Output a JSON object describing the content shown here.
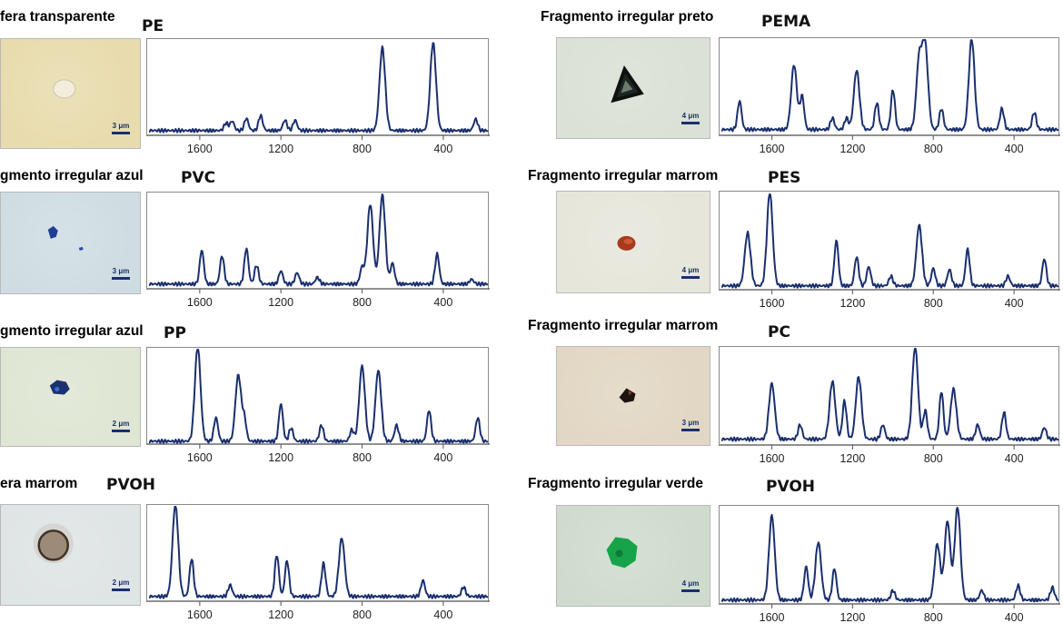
{
  "colors": {
    "line": "#1a2f6e",
    "axis": "#6b6b6b"
  },
  "panels": [
    {
      "sample": "fera transparente",
      "polymer": "PE",
      "scale": "3 μm",
      "photo_bg": "#e8dcae",
      "particle": "faint-transparent-sphere-icon"
    },
    {
      "sample": "gmento irregular azul",
      "polymer": "PVC",
      "scale": "3 μm",
      "photo_bg": "#cfdde3",
      "particle": "blue-fragment-icon"
    },
    {
      "sample": "gmento irregular azul",
      "polymer": "PP",
      "scale": "2 μm",
      "photo_bg": "#dfe6d3",
      "particle": "dark-blue-fragment-icon"
    },
    {
      "sample": "era marrom",
      "polymer": "PVOH",
      "scale": "2 μm",
      "photo_bg": "#dfe4e4",
      "particle": "brown-sphere-icon"
    },
    {
      "sample": "Fragmento irregular preto",
      "polymer": "PEMA",
      "scale": "4 μm",
      "photo_bg": "#dbe1d6",
      "particle": "black-triangular-fragment-icon"
    },
    {
      "sample": "Fragmento irregular marrom",
      "polymer": "PES",
      "scale": "4 μm",
      "photo_bg": "#e6e6db",
      "particle": "red-brown-fragment-icon"
    },
    {
      "sample": "Fragmento irregular marrom",
      "polymer": "PC",
      "scale": "3 μm",
      "photo_bg": "#e2d7c4",
      "particle": "dark-fragment-icon"
    },
    {
      "sample": "Fragmento irregular verde",
      "polymer": "PVOH",
      "scale": "4 μm",
      "photo_bg": "#cfdccd",
      "particle": "green-fragment-icon"
    }
  ],
  "chart_data": [
    {
      "type": "line",
      "title": "PE",
      "xlim": [
        1850,
        180
      ],
      "ylim": [
        0,
        1
      ],
      "xticks": [
        1600,
        1200,
        800,
        400
      ],
      "base": 0.05,
      "peaks": [
        [
          1470,
          0.08
        ],
        [
          1440,
          0.1
        ],
        [
          1370,
          0.13
        ],
        [
          1300,
          0.16
        ],
        [
          1180,
          0.11
        ],
        [
          1130,
          0.11
        ],
        [
          700,
          0.88
        ],
        [
          450,
          0.93
        ],
        [
          240,
          0.12
        ]
      ]
    },
    {
      "type": "line",
      "title": "PVC",
      "xlim": [
        1850,
        180
      ],
      "ylim": [
        0,
        1
      ],
      "xticks": [
        1600,
        1200,
        800,
        400
      ],
      "base": 0.05,
      "peaks": [
        [
          1590,
          0.36
        ],
        [
          1490,
          0.3
        ],
        [
          1370,
          0.38
        ],
        [
          1320,
          0.2
        ],
        [
          1200,
          0.14
        ],
        [
          1120,
          0.12
        ],
        [
          1020,
          0.07
        ],
        [
          800,
          0.18
        ],
        [
          760,
          0.85
        ],
        [
          700,
          0.95
        ],
        [
          650,
          0.22
        ],
        [
          430,
          0.32
        ],
        [
          260,
          0.05
        ]
      ]
    },
    {
      "type": "line",
      "title": "PP",
      "xlim": [
        1850,
        180
      ],
      "ylim": [
        0,
        1
      ],
      "xticks": [
        1600,
        1200,
        800,
        400
      ],
      "base": 0.03,
      "peaks": [
        [
          1610,
          1.0
        ],
        [
          1520,
          0.25
        ],
        [
          1410,
          0.7
        ],
        [
          1380,
          0.22
        ],
        [
          1200,
          0.4
        ],
        [
          1150,
          0.14
        ],
        [
          1000,
          0.17
        ],
        [
          850,
          0.12
        ],
        [
          800,
          0.8
        ],
        [
          720,
          0.75
        ],
        [
          630,
          0.17
        ],
        [
          470,
          0.33
        ],
        [
          230,
          0.25
        ]
      ]
    },
    {
      "type": "line",
      "title": "PVOH",
      "xlim": [
        1850,
        180
      ],
      "ylim": [
        0,
        1
      ],
      "xticks": [
        1600,
        1200,
        800,
        400
      ],
      "base": 0.05,
      "peaks": [
        [
          1720,
          0.98
        ],
        [
          1640,
          0.4
        ],
        [
          1450,
          0.12
        ],
        [
          1220,
          0.44
        ],
        [
          1170,
          0.38
        ],
        [
          990,
          0.35
        ],
        [
          900,
          0.62
        ],
        [
          500,
          0.17
        ],
        [
          300,
          0.1
        ]
      ]
    },
    {
      "type": "line",
      "title": "PEMA",
      "xlim": [
        1850,
        180
      ],
      "ylim": [
        0,
        1
      ],
      "xticks": [
        1600,
        1200,
        800,
        400
      ],
      "base": 0.06,
      "peaks": [
        [
          1760,
          0.3
        ],
        [
          1490,
          0.68
        ],
        [
          1450,
          0.35
        ],
        [
          1300,
          0.12
        ],
        [
          1230,
          0.12
        ],
        [
          1180,
          0.62
        ],
        [
          1080,
          0.28
        ],
        [
          1000,
          0.42
        ],
        [
          870,
          0.74
        ],
        [
          840,
          0.86
        ],
        [
          760,
          0.22
        ],
        [
          610,
          0.95
        ],
        [
          460,
          0.22
        ],
        [
          300,
          0.18
        ]
      ]
    },
    {
      "type": "line",
      "title": "PES",
      "xlim": [
        1850,
        180
      ],
      "ylim": [
        0,
        1
      ],
      "xticks": [
        1600,
        1200,
        800,
        400
      ],
      "base": 0.04,
      "peaks": [
        [
          1720,
          0.55
        ],
        [
          1610,
          0.97
        ],
        [
          1280,
          0.47
        ],
        [
          1180,
          0.3
        ],
        [
          1120,
          0.2
        ],
        [
          1010,
          0.1
        ],
        [
          870,
          0.63
        ],
        [
          800,
          0.18
        ],
        [
          720,
          0.17
        ],
        [
          630,
          0.38
        ],
        [
          430,
          0.1
        ],
        [
          250,
          0.28
        ]
      ]
    },
    {
      "type": "line",
      "title": "PC",
      "xlim": [
        1850,
        180
      ],
      "ylim": [
        0,
        1
      ],
      "xticks": [
        1600,
        1200,
        800,
        400
      ],
      "base": 0.06,
      "peaks": [
        [
          1600,
          0.58
        ],
        [
          1460,
          0.15
        ],
        [
          1300,
          0.6
        ],
        [
          1240,
          0.4
        ],
        [
          1170,
          0.65
        ],
        [
          1050,
          0.15
        ],
        [
          890,
          0.97
        ],
        [
          840,
          0.3
        ],
        [
          760,
          0.5
        ],
        [
          700,
          0.52
        ],
        [
          580,
          0.15
        ],
        [
          450,
          0.28
        ],
        [
          250,
          0.12
        ]
      ]
    },
    {
      "type": "line",
      "title": "PVOH",
      "xlim": [
        1850,
        180
      ],
      "ylim": [
        0,
        1
      ],
      "xticks": [
        1600,
        1200,
        800,
        400
      ],
      "base": 0.04,
      "peaks": [
        [
          1600,
          0.88
        ],
        [
          1430,
          0.35
        ],
        [
          1370,
          0.6
        ],
        [
          1290,
          0.33
        ],
        [
          1000,
          0.1
        ],
        [
          780,
          0.58
        ],
        [
          730,
          0.82
        ],
        [
          680,
          0.97
        ],
        [
          560,
          0.1
        ],
        [
          380,
          0.15
        ],
        [
          210,
          0.13
        ]
      ]
    }
  ]
}
